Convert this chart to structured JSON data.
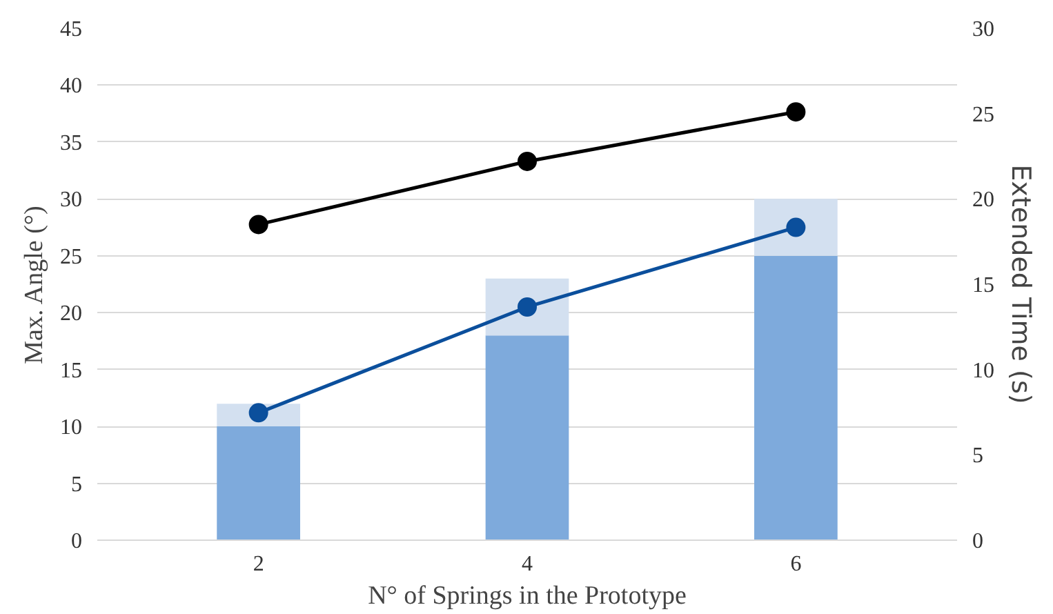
{
  "chart_data": {
    "type": "bar",
    "stacked": true,
    "xlabel": "N° of Springs in the Prototype",
    "ylabel": "Max. Angle (°)",
    "y2label": "Extended Time (s)",
    "categories": [
      "2",
      "4",
      "6"
    ],
    "series": [
      {
        "color": "#7eaadc",
        "values": [
          10,
          18,
          25
        ]
      },
      {
        "color": "#d3e0f0",
        "values": [
          2,
          5,
          5
        ]
      },
      {
        "type": "line",
        "color": "#0b4f9c",
        "values": [
          11.2,
          20.5,
          27.5
        ],
        "marker": "circle"
      },
      {
        "type": "line",
        "axis": "y2",
        "color": "#000000",
        "values": [
          18.5,
          22.2,
          25.1
        ],
        "marker": "circle"
      }
    ],
    "ylim": [
      0,
      45
    ],
    "yticks": [
      0,
      5,
      10,
      15,
      20,
      25,
      30,
      35,
      40,
      45
    ],
    "y2lim": [
      0,
      30
    ],
    "y2ticks": [
      0,
      5,
      10,
      15,
      20,
      25,
      30
    ],
    "grid": "y"
  }
}
